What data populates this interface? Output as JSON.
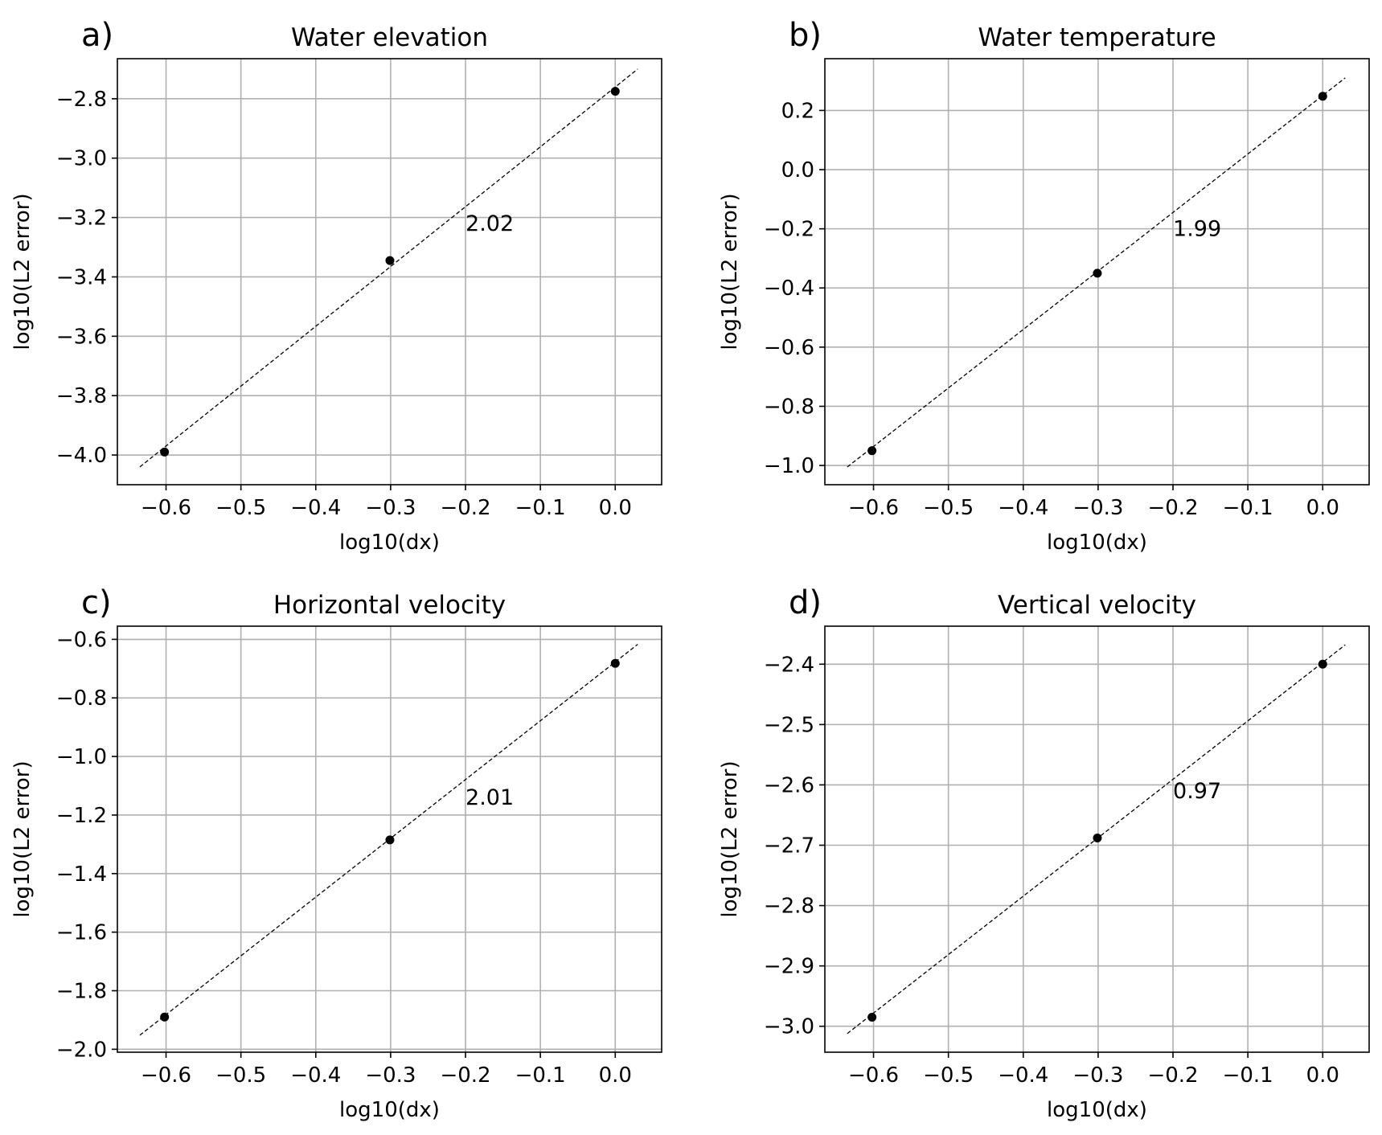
{
  "chart_data": [
    {
      "type": "scatter",
      "letter": "a)",
      "title": "Water elevation",
      "xlabel": "log10(dx)",
      "ylabel": "log10(L2 error)",
      "xlim": [
        -0.665,
        0.062
      ],
      "ylim": [
        -4.1,
        -2.665
      ],
      "xticks": [
        -0.6,
        -0.5,
        -0.4,
        -0.3,
        -0.2,
        -0.1,
        0.0
      ],
      "xtick_labels": [
        "−0.6",
        "−0.5",
        "−0.4",
        "−0.3",
        "−0.2",
        "−0.1",
        "0.0"
      ],
      "yticks": [
        -4.0,
        -3.8,
        -3.6,
        -3.4,
        -3.2,
        -3.0,
        -2.8
      ],
      "ytick_labels": [
        "−4.0",
        "−3.8",
        "−3.6",
        "−3.4",
        "−3.2",
        "−3.0",
        "−2.8"
      ],
      "grid": true,
      "points": [
        {
          "x": -0.602,
          "y": -3.99
        },
        {
          "x": -0.301,
          "y": -3.345
        },
        {
          "x": 0.0,
          "y": -2.775
        }
      ],
      "fit_line": {
        "x": [
          -0.635,
          0.03
        ],
        "y": [
          -4.04,
          -2.7
        ]
      },
      "annotation": {
        "text": "2.02",
        "x": -0.2,
        "y": -3.22
      }
    },
    {
      "type": "scatter",
      "letter": "b)",
      "title": "Water temperature",
      "xlabel": "log10(dx)",
      "ylabel": "log10(L2 error)",
      "xlim": [
        -0.665,
        0.062
      ],
      "ylim": [
        -1.065,
        0.375
      ],
      "xticks": [
        -0.6,
        -0.5,
        -0.4,
        -0.3,
        -0.2,
        -0.1,
        0.0
      ],
      "xtick_labels": [
        "−0.6",
        "−0.5",
        "−0.4",
        "−0.3",
        "−0.2",
        "−0.1",
        "0.0"
      ],
      "yticks": [
        -1.0,
        -0.8,
        -0.6,
        -0.4,
        -0.2,
        0.0,
        0.2
      ],
      "ytick_labels": [
        "−1.0",
        "−0.8",
        "−0.6",
        "−0.4",
        "−0.2",
        "0.0",
        "0.2"
      ],
      "grid": true,
      "points": [
        {
          "x": -0.602,
          "y": -0.95
        },
        {
          "x": -0.301,
          "y": -0.35
        },
        {
          "x": 0.0,
          "y": 0.248
        }
      ],
      "fit_line": {
        "x": [
          -0.635,
          0.03
        ],
        "y": [
          -1.005,
          0.31
        ]
      },
      "annotation": {
        "text": "1.99",
        "x": -0.2,
        "y": -0.2
      }
    },
    {
      "type": "scatter",
      "letter": "c)",
      "title": "Horizontal velocity",
      "xlabel": "log10(dx)",
      "ylabel": "log10(L2 error)",
      "xlim": [
        -0.665,
        0.062
      ],
      "ylim": [
        -2.01,
        -0.555
      ],
      "xticks": [
        -0.6,
        -0.5,
        -0.4,
        -0.3,
        -0.2,
        -0.1,
        0.0
      ],
      "xtick_labels": [
        "−0.6",
        "−0.5",
        "−0.4",
        "−0.3",
        "−0.2",
        "−0.1",
        "0.0"
      ],
      "yticks": [
        -2.0,
        -1.8,
        -1.6,
        -1.4,
        -1.2,
        -1.0,
        -0.8,
        -0.6
      ],
      "ytick_labels": [
        "−2.0",
        "−1.8",
        "−1.6",
        "−1.4",
        "−1.2",
        "−1.0",
        "−0.8",
        "−0.6"
      ],
      "grid": true,
      "points": [
        {
          "x": -0.602,
          "y": -1.89
        },
        {
          "x": -0.301,
          "y": -1.285
        },
        {
          "x": 0.0,
          "y": -0.682
        }
      ],
      "fit_line": {
        "x": [
          -0.635,
          0.03
        ],
        "y": [
          -1.952,
          -0.617
        ]
      },
      "annotation": {
        "text": "2.01",
        "x": -0.2,
        "y": -1.14
      }
    },
    {
      "type": "scatter",
      "letter": "d)",
      "title": "Vertical velocity",
      "xlabel": "log10(dx)",
      "ylabel": "log10(L2 error)",
      "xlim": [
        -0.665,
        0.062
      ],
      "ylim": [
        -3.043,
        -2.337
      ],
      "xticks": [
        -0.6,
        -0.5,
        -0.4,
        -0.3,
        -0.2,
        -0.1,
        0.0
      ],
      "xtick_labels": [
        "−0.6",
        "−0.5",
        "−0.4",
        "−0.3",
        "−0.2",
        "−0.1",
        "0.0"
      ],
      "yticks": [
        -3.0,
        -2.9,
        -2.8,
        -2.7,
        -2.6,
        -2.5,
        -2.4
      ],
      "ytick_labels": [
        "−3.0",
        "−2.9",
        "−2.8",
        "−2.7",
        "−2.6",
        "−2.5",
        "−2.4"
      ],
      "grid": true,
      "points": [
        {
          "x": -0.602,
          "y": -2.985
        },
        {
          "x": -0.301,
          "y": -2.688
        },
        {
          "x": 0.0,
          "y": -2.4
        }
      ],
      "fit_line": {
        "x": [
          -0.635,
          0.03
        ],
        "y": [
          -3.012,
          -2.368
        ]
      },
      "annotation": {
        "text": "0.97",
        "x": -0.2,
        "y": -2.61
      }
    }
  ]
}
